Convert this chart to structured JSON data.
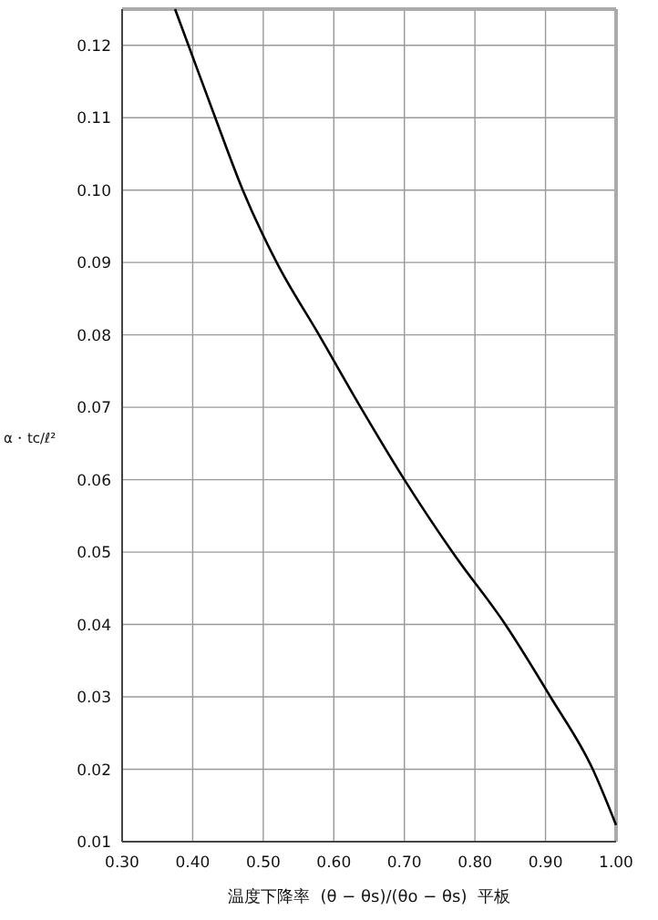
{
  "chart_data": {
    "type": "line",
    "xlabel": "温度下降率  (θ − θs)/(θo − θs)  平板",
    "ylabel": "α・tc/ℓ²",
    "x": [
      0.375,
      0.394,
      0.432,
      0.471,
      0.519,
      0.579,
      0.638,
      0.7,
      0.768,
      0.843,
      0.907,
      0.967,
      1.0
    ],
    "series": [
      {
        "color": "#000000",
        "values": [
          0.125,
          0.12,
          0.11,
          0.1,
          0.09,
          0.08,
          0.07,
          0.06,
          0.05,
          0.04,
          0.03,
          0.02,
          0.0123
        ]
      }
    ],
    "xlim": [
      0.3,
      1.0
    ],
    "ylim": [
      0.01,
      0.125
    ],
    "xticks": [
      {
        "value": 0.3,
        "label": "0.30"
      },
      {
        "value": 0.4,
        "label": "0.40"
      },
      {
        "value": 0.5,
        "label": "0.50"
      },
      {
        "value": 0.6,
        "label": "0.60"
      },
      {
        "value": 0.7,
        "label": "0.70"
      },
      {
        "value": 0.8,
        "label": "0.80"
      },
      {
        "value": 0.9,
        "label": "0.90"
      },
      {
        "value": 1.0,
        "label": "1.00"
      }
    ],
    "yticks": [
      0.01,
      0.02,
      0.03,
      0.04,
      0.05,
      0.06,
      0.07,
      0.08,
      0.09,
      {
        "value": 0.1,
        "label": "0.10"
      },
      0.11,
      0.12
    ],
    "grid": true,
    "marker": "none",
    "line_style": "solid"
  }
}
